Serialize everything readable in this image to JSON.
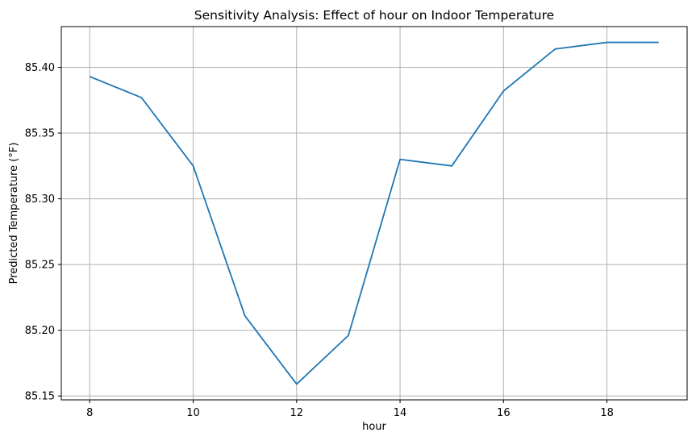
{
  "chart_data": {
    "type": "line",
    "title": "Sensitivity Analysis: Effect of hour on Indoor Temperature",
    "xlabel": "hour",
    "ylabel": "Predicted Temperature (°F)",
    "xlim": [
      7.45,
      19.55
    ],
    "ylim": [
      85.147,
      85.431
    ],
    "grid": true,
    "x_ticks": [
      8,
      10,
      12,
      14,
      16,
      18
    ],
    "x_tick_labels": [
      "8",
      "10",
      "12",
      "14",
      "16",
      "18"
    ],
    "y_ticks": [
      85.15,
      85.2,
      85.25,
      85.3,
      85.35,
      85.4
    ],
    "y_tick_labels": [
      "85.15",
      "85.20",
      "85.25",
      "85.30",
      "85.35",
      "85.40"
    ],
    "series": [
      {
        "color": "#1f77b4",
        "x": [
          8,
          9,
          10,
          11,
          12,
          13,
          14,
          15,
          16,
          17,
          18,
          19
        ],
        "y": [
          85.393,
          85.377,
          85.325,
          85.211,
          85.159,
          85.196,
          85.33,
          85.325,
          85.382,
          85.414,
          85.419,
          85.419
        ]
      }
    ]
  }
}
